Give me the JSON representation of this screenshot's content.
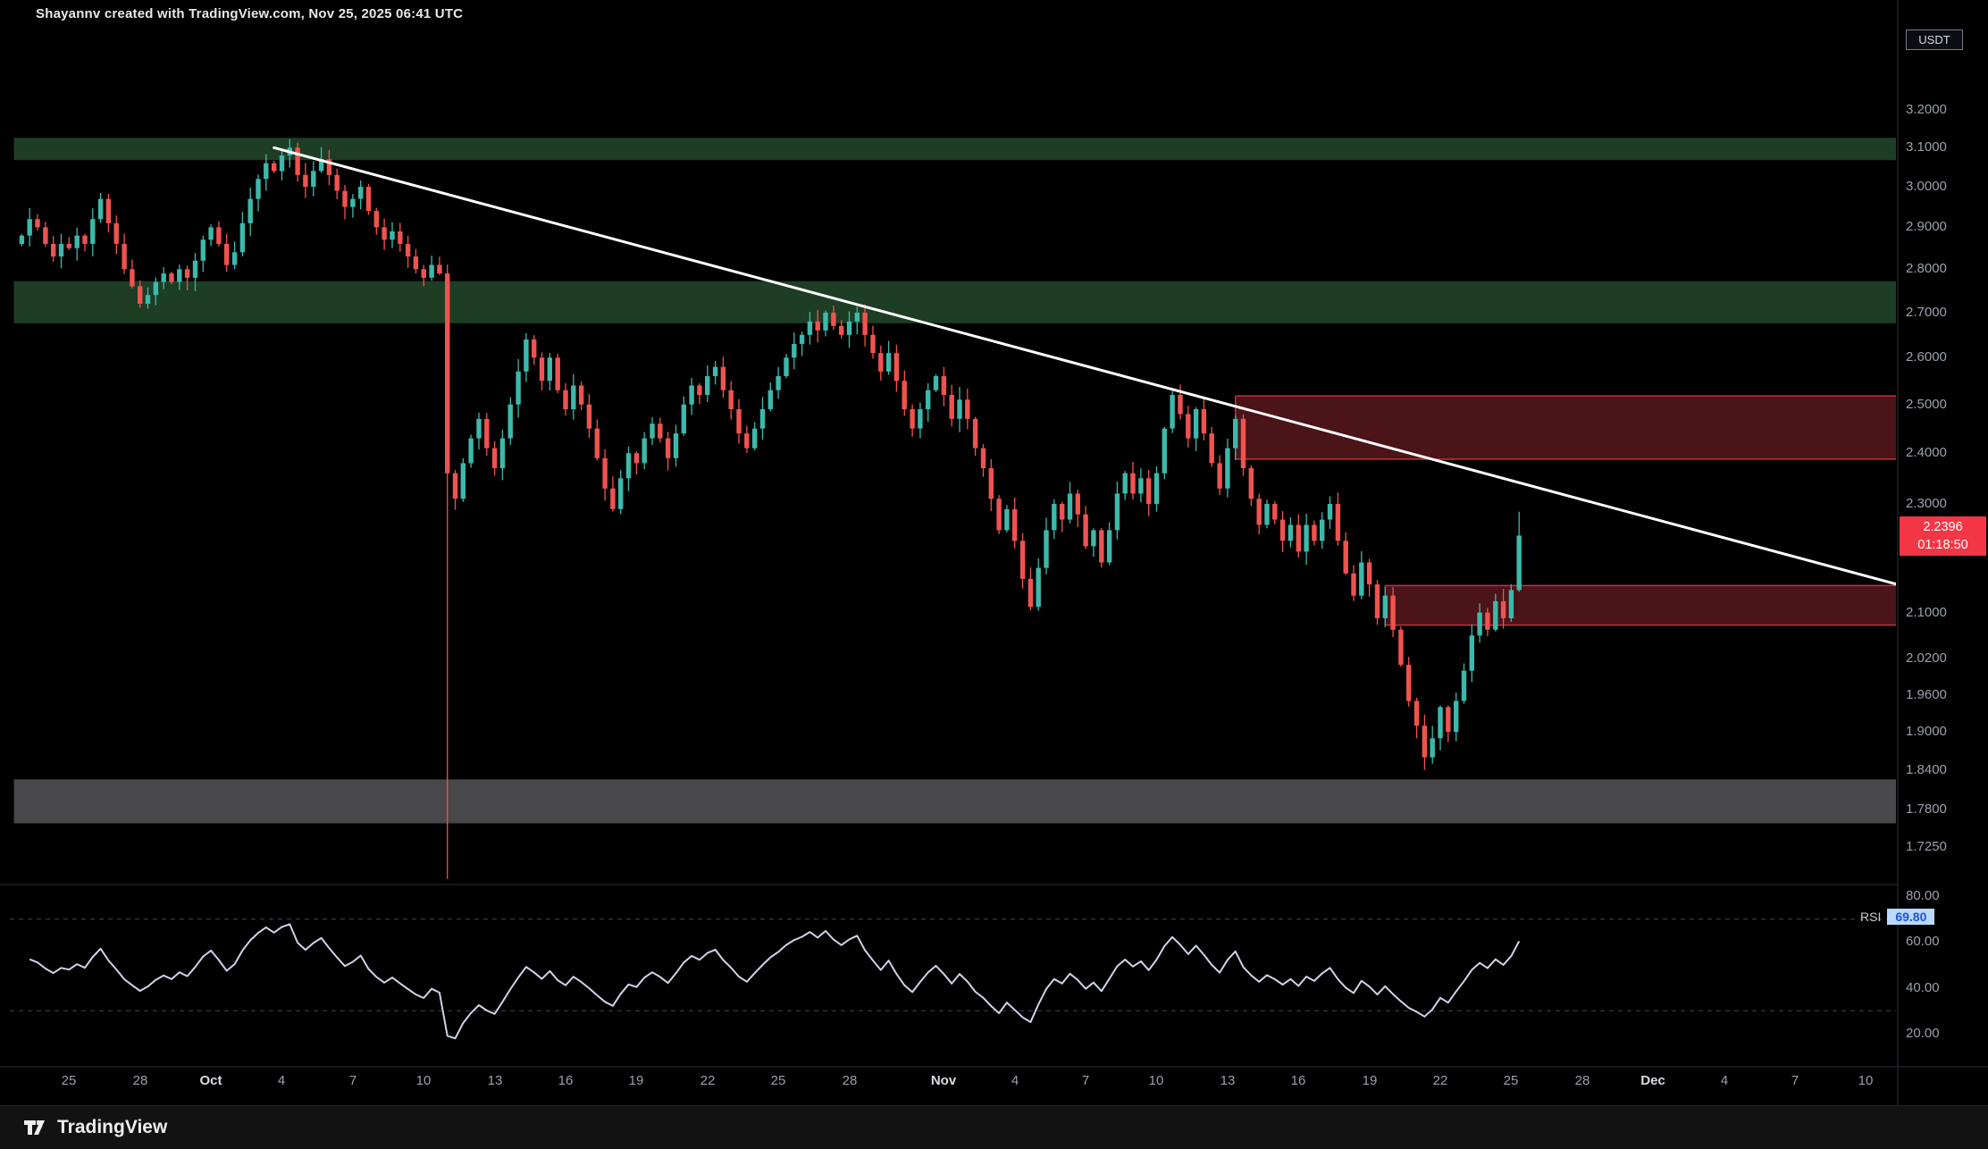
{
  "header": {
    "credit": "Shayannv created with TradingView.com, Nov 25, 2025 06:41 UTC"
  },
  "symbol_tag": "USDT",
  "price_badge": {
    "price": "2.2396",
    "countdown": "01:18:50"
  },
  "rsi_chip": {
    "label": "RSI",
    "value": "69.80"
  },
  "footer": {
    "brand": "TradingView"
  },
  "colors": {
    "background": "#000000",
    "up": "#3cb9ab",
    "down": "#ef5350",
    "zone_green": "rgba(58,122,72,0.5)",
    "zone_red_fill": "rgba(150,40,48,0.5)",
    "zone_red_border": "#c0333e",
    "zone_gray": "rgba(160,160,165,0.45)",
    "trendline": "#ffffff",
    "rsi_line": "#cfd3e8",
    "badge_red": "#f23645",
    "axis_text": "#9aa0aa"
  },
  "chart_data": {
    "type": "candlestick",
    "quote": "USDT",
    "scale": "log",
    "candles_per_day": 3,
    "start_date": "Sep 23",
    "end_date": "Nov 25 06:41 UTC",
    "price_axis_range": {
      "top": 3.428,
      "bottom": 1.677
    },
    "current_price": 2.2396,
    "countdown": "01:18:50",
    "closes": [
      2.88,
      2.92,
      2.9,
      2.86,
      2.83,
      2.86,
      2.85,
      2.88,
      2.86,
      2.92,
      2.97,
      2.91,
      2.86,
      2.8,
      2.76,
      2.72,
      2.74,
      2.77,
      2.79,
      2.77,
      2.8,
      2.78,
      2.82,
      2.87,
      2.9,
      2.86,
      2.81,
      2.84,
      2.91,
      2.97,
      3.02,
      3.06,
      3.04,
      3.08,
      3.1,
      3.03,
      3.0,
      3.04,
      3.07,
      3.03,
      2.99,
      2.95,
      2.97,
      3.0,
      2.94,
      2.9,
      2.87,
      2.89,
      2.86,
      2.83,
      2.8,
      2.78,
      2.81,
      2.79,
      2.36,
      2.31,
      2.38,
      2.43,
      2.47,
      2.41,
      2.37,
      2.43,
      2.5,
      2.57,
      2.64,
      2.6,
      2.55,
      2.6,
      2.53,
      2.49,
      2.54,
      2.5,
      2.45,
      2.39,
      2.33,
      2.29,
      2.35,
      2.4,
      2.38,
      2.43,
      2.46,
      2.43,
      2.39,
      2.44,
      2.5,
      2.54,
      2.52,
      2.56,
      2.58,
      2.53,
      2.49,
      2.44,
      2.41,
      2.45,
      2.49,
      2.53,
      2.56,
      2.6,
      2.63,
      2.65,
      2.68,
      2.66,
      2.7,
      2.67,
      2.65,
      2.68,
      2.7,
      2.65,
      2.61,
      2.57,
      2.61,
      2.55,
      2.49,
      2.45,
      2.49,
      2.53,
      2.56,
      2.52,
      2.47,
      2.51,
      2.47,
      2.41,
      2.37,
      2.31,
      2.25,
      2.29,
      2.23,
      2.16,
      2.11,
      2.18,
      2.25,
      2.3,
      2.27,
      2.32,
      2.28,
      2.22,
      2.25,
      2.19,
      2.25,
      2.32,
      2.36,
      2.32,
      2.35,
      2.3,
      2.36,
      2.45,
      2.52,
      2.48,
      2.43,
      2.49,
      2.44,
      2.38,
      2.33,
      2.41,
      2.47,
      2.37,
      2.31,
      2.26,
      2.3,
      2.27,
      2.23,
      2.26,
      2.21,
      2.26,
      2.23,
      2.27,
      2.3,
      2.23,
      2.17,
      2.13,
      2.19,
      2.15,
      2.09,
      2.13,
      2.07,
      2.01,
      1.95,
      1.91,
      1.86,
      1.89,
      1.94,
      1.9,
      1.95,
      2.0,
      2.06,
      2.1,
      2.07,
      2.12,
      2.09,
      2.14,
      2.24
    ],
    "specials": {
      "54": {
        "low": 1.68
      },
      "190": {
        "high": 2.285
      }
    },
    "zones": [
      {
        "label": "resistance-zone-high",
        "color": "green",
        "p_top": 3.126,
        "p_bottom": 3.068,
        "i1": -1,
        "i2": 239
      },
      {
        "label": "resistance-zone-mid",
        "color": "green",
        "p_top": 2.772,
        "p_bottom": 2.676,
        "i1": -1,
        "i2": 239
      },
      {
        "label": "supply-zone-upper",
        "color": "red",
        "p_top": 2.518,
        "p_bottom": 2.388,
        "i1": 154,
        "i2": 239
      },
      {
        "label": "supply-zone-lower",
        "color": "red",
        "p_top": 2.148,
        "p_bottom": 2.078,
        "i1": 173,
        "i2": 239
      },
      {
        "label": "support-zone-low",
        "color": "gray",
        "p_top": 1.826,
        "p_bottom": 1.76,
        "i1": -1,
        "i2": 239
      }
    ],
    "trendline": {
      "i1": 32,
      "p1": 3.1,
      "i2": 238,
      "p2": 2.15
    },
    "price_ticks": [
      {
        "text": "3.2000",
        "value": 3.2
      },
      {
        "text": "3.1000",
        "value": 3.1
      },
      {
        "text": "3.0000",
        "value": 3.0
      },
      {
        "text": "2.9000",
        "value": 2.9
      },
      {
        "text": "2.8000",
        "value": 2.8
      },
      {
        "text": "2.7000",
        "value": 2.7
      },
      {
        "text": "2.6000",
        "value": 2.6
      },
      {
        "text": "2.5000",
        "value": 2.5
      },
      {
        "text": "2.4000",
        "value": 2.4
      },
      {
        "text": "2.3000",
        "value": 2.3
      },
      {
        "text": "2.1000",
        "value": 2.1
      },
      {
        "text": "2.0200",
        "value": 2.02
      },
      {
        "text": "1.9600",
        "value": 1.96
      },
      {
        "text": "1.9000",
        "value": 1.9
      },
      {
        "text": "1.8400",
        "value": 1.84
      },
      {
        "text": "1.7800",
        "value": 1.78
      },
      {
        "text": "1.7250",
        "value": 1.725
      }
    ],
    "time_ticks": [
      {
        "label": "25",
        "i": 6,
        "month": false
      },
      {
        "label": "28",
        "i": 15,
        "month": false
      },
      {
        "label": "Oct",
        "i": 24,
        "month": true
      },
      {
        "label": "4",
        "i": 33,
        "month": false
      },
      {
        "label": "7",
        "i": 42,
        "month": false
      },
      {
        "label": "10",
        "i": 51,
        "month": false
      },
      {
        "label": "13",
        "i": 60,
        "month": false
      },
      {
        "label": "16",
        "i": 69,
        "month": false
      },
      {
        "label": "19",
        "i": 78,
        "month": false
      },
      {
        "label": "22",
        "i": 87,
        "month": false
      },
      {
        "label": "25",
        "i": 96,
        "month": false
      },
      {
        "label": "28",
        "i": 105,
        "month": false
      },
      {
        "label": "Nov",
        "i": 117,
        "month": true
      },
      {
        "label": "4",
        "i": 126,
        "month": false
      },
      {
        "label": "7",
        "i": 135,
        "month": false
      },
      {
        "label": "10",
        "i": 144,
        "month": false
      },
      {
        "label": "13",
        "i": 153,
        "month": false
      },
      {
        "label": "16",
        "i": 162,
        "month": false
      },
      {
        "label": "19",
        "i": 171,
        "month": false
      },
      {
        "label": "22",
        "i": 180,
        "month": false
      },
      {
        "label": "25",
        "i": 189,
        "month": false
      },
      {
        "label": "28",
        "i": 198,
        "month": false
      },
      {
        "label": "Dec",
        "i": 207,
        "month": true
      },
      {
        "label": "4",
        "i": 216,
        "month": false
      },
      {
        "label": "7",
        "i": 225,
        "month": false
      },
      {
        "label": "10",
        "i": 234,
        "month": false
      }
    ],
    "rsi": {
      "period": 14,
      "current": 69.8,
      "dashed_levels": [
        70,
        30
      ],
      "ticks": [
        {
          "text": "80.00",
          "value": 80
        },
        {
          "text": "60.00",
          "value": 60
        },
        {
          "text": "40.00",
          "value": 40
        },
        {
          "text": "20.00",
          "value": 20
        }
      ]
    }
  }
}
